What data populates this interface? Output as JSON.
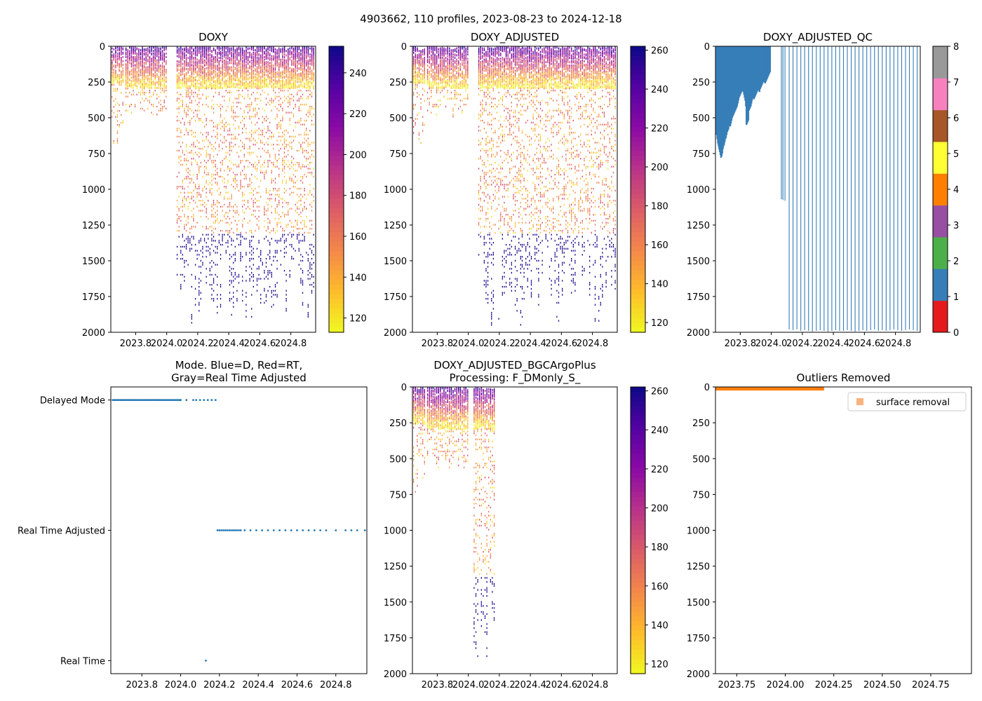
{
  "figure_title": "4903662, 110 profiles, 2023-08-23 to 2024-12-18",
  "colors": {
    "qc": [
      "#e41a1c",
      "#377eb8",
      "#4daf4a",
      "#984ea3",
      "#ff7f00",
      "#ffff33",
      "#a65628",
      "#f781bf",
      "#999999"
    ],
    "qc_bar": "#377eb8",
    "mode_point": "#1f77b4",
    "outlier": "#ff7f0e",
    "outlier_legend": "#f9b37e"
  },
  "chart_data": [
    {
      "id": "doxy",
      "type": "heatmap",
      "title": "DOXY",
      "x_ticks": [
        "2023.8",
        "2024.0",
        "2024.2",
        "2024.4",
        "2024.6",
        "2024.8"
      ],
      "x_tick_values": [
        2023.8,
        2024.0,
        2024.2,
        2024.4,
        2024.6,
        2024.8
      ],
      "xlim": [
        2023.64,
        2024.96
      ],
      "y_ticks": [
        "0",
        "250",
        "500",
        "750",
        "1000",
        "1250",
        "1500",
        "1750",
        "2000"
      ],
      "ylim": [
        2000,
        0
      ],
      "colorbar": {
        "cmap": "plasma_r",
        "range": [
          113,
          253
        ],
        "ticks": [
          "120",
          "140",
          "160",
          "180",
          "200",
          "220",
          "240"
        ],
        "tick_values": [
          120,
          140,
          160,
          180,
          200,
          220,
          240
        ]
      },
      "segments": [
        {
          "x": [
            2023.64,
            2023.73
          ],
          "shallow_max": 250,
          "deep_max": 700
        },
        {
          "x": [
            2023.73,
            2024.0
          ],
          "shallow_max": 290,
          "deep_max": 500
        },
        {
          "x": [
            2024.06,
            2024.34
          ],
          "shallow_max": 290,
          "deep_max": 2000
        },
        {
          "x": [
            2024.34,
            2024.95
          ],
          "shallow_max": 290,
          "deep_max": 1950
        }
      ]
    },
    {
      "id": "doxy_adjusted",
      "type": "heatmap",
      "title": "DOXY_ADJUSTED",
      "x_ticks": [
        "2023.8",
        "2024.0",
        "2024.2",
        "2024.4",
        "2024.6",
        "2024.8"
      ],
      "x_tick_values": [
        2023.8,
        2024.0,
        2024.2,
        2024.4,
        2024.6,
        2024.8
      ],
      "xlim": [
        2023.64,
        2024.96
      ],
      "y_ticks": [
        "0",
        "250",
        "500",
        "750",
        "1000",
        "1250",
        "1500",
        "1750",
        "2000"
      ],
      "ylim": [
        2000,
        0
      ],
      "colorbar": {
        "cmap": "plasma_r",
        "range": [
          115,
          262
        ],
        "ticks": [
          "120",
          "140",
          "160",
          "180",
          "200",
          "220",
          "240",
          "260"
        ],
        "tick_values": [
          120,
          140,
          160,
          180,
          200,
          220,
          240,
          260
        ]
      },
      "segments": [
        {
          "x": [
            2023.64,
            2023.73
          ],
          "shallow_max": 250,
          "deep_max": 700
        },
        {
          "x": [
            2023.73,
            2024.0
          ],
          "shallow_max": 290,
          "deep_max": 500
        },
        {
          "x": [
            2024.06,
            2024.34
          ],
          "shallow_max": 290,
          "deep_max": 2000
        },
        {
          "x": [
            2024.34,
            2024.95
          ],
          "shallow_max": 290,
          "deep_max": 1950
        }
      ]
    },
    {
      "id": "doxy_adjusted_qc",
      "type": "bar",
      "title": "DOXY_ADJUSTED_QC",
      "x_ticks": [
        "2023.8",
        "2024.0",
        "2024.2",
        "2024.4",
        "2024.6",
        "2024.8"
      ],
      "x_tick_values": [
        2023.8,
        2024.0,
        2024.2,
        2024.4,
        2024.6,
        2024.8
      ],
      "xlim": [
        2023.64,
        2024.96
      ],
      "y_ticks": [
        "0",
        "250",
        "500",
        "750",
        "1000",
        "1250",
        "1500",
        "1750",
        "2000"
      ],
      "ylim": [
        2000,
        0
      ],
      "colorbar": {
        "cmap": "qc",
        "range": [
          0,
          8
        ],
        "ticks": [
          "0",
          "1",
          "2",
          "3",
          "4",
          "5",
          "6",
          "7",
          "8"
        ],
        "tick_values": [
          0,
          1,
          2,
          3,
          4,
          5,
          6,
          7,
          8
        ]
      },
      "profile_x": [
        2023.648,
        2023.652,
        2023.656,
        2023.66,
        2023.664,
        2023.668,
        2023.672,
        2023.676,
        2023.68,
        2023.684,
        2023.688,
        2023.692,
        2023.696,
        2023.7,
        2023.704,
        2023.708,
        2023.712,
        2023.716,
        2023.72,
        2023.724,
        2023.728,
        2023.732,
        2023.736,
        2023.74,
        2023.744,
        2023.748,
        2023.752,
        2023.756,
        2023.76,
        2023.764,
        2023.768,
        2023.772,
        2023.776,
        2023.78,
        2023.784,
        2023.788,
        2023.792,
        2023.796,
        2023.8,
        2023.804,
        2023.808,
        2023.812,
        2023.816,
        2023.82,
        2023.824,
        2023.828,
        2023.832,
        2023.836,
        2023.84,
        2023.844,
        2023.848,
        2023.852,
        2023.856,
        2023.86,
        2023.864,
        2023.868,
        2023.872,
        2023.876,
        2023.88,
        2023.884,
        2023.888,
        2023.892,
        2023.896,
        2023.9,
        2023.904,
        2023.908,
        2023.912,
        2023.916,
        2023.92,
        2023.924,
        2023.928,
        2023.932,
        2023.936,
        2023.94,
        2023.944,
        2023.948,
        2023.952,
        2023.956,
        2023.96,
        2023.964,
        2023.968,
        2023.972,
        2023.976,
        2023.98,
        2023.984,
        2023.988,
        2023.992,
        2024.065,
        2024.075,
        2024.088,
        2024.115,
        2024.14,
        2024.165,
        2024.19,
        2024.215,
        2024.24,
        2024.265,
        2024.29,
        2024.315,
        2024.34,
        2024.365,
        2024.39,
        2024.415,
        2024.44,
        2024.465,
        2024.49,
        2024.515,
        2024.54,
        2024.565,
        2024.59,
        2024.615,
        2024.64,
        2024.665,
        2024.69,
        2024.715,
        2024.74,
        2024.765,
        2024.79,
        2024.815,
        2024.84,
        2024.865,
        2024.89,
        2024.915,
        2024.94
      ],
      "profile_max_depth": [
        620,
        650,
        680,
        700,
        720,
        740,
        760,
        780,
        770,
        750,
        720,
        700,
        690,
        670,
        650,
        640,
        620,
        600,
        590,
        580,
        560,
        550,
        560,
        540,
        520,
        500,
        490,
        480,
        470,
        460,
        450,
        440,
        430,
        420,
        400,
        380,
        360,
        350,
        340,
        330,
        320,
        310,
        300,
        320,
        340,
        360,
        380,
        420,
        550,
        540,
        530,
        520,
        450,
        440,
        430,
        420,
        400,
        380,
        360,
        350,
        370,
        360,
        350,
        340,
        330,
        320,
        310,
        300,
        310,
        320,
        300,
        290,
        280,
        270,
        260,
        250,
        240,
        250,
        260,
        250,
        240,
        230,
        220,
        210,
        200,
        190,
        180,
        1070,
        1075,
        1080,
        1980,
        1985,
        1980,
        1990,
        1985,
        1990,
        1995,
        1990,
        1985,
        1990,
        1995,
        1990,
        1985,
        1990,
        1990,
        1985,
        1990,
        1995,
        1990,
        1985,
        1990,
        1985,
        1980,
        1990,
        1985,
        1990,
        1985,
        1980,
        1985,
        1990,
        1985,
        1980,
        1985,
        1990
      ]
    },
    {
      "id": "mode",
      "type": "scatter",
      "title": "Mode. Blue=D, Red=RT,\nGray=Real Time Adjusted",
      "x_ticks": [
        "2023.8",
        "2024.0",
        "2024.2",
        "2024.4",
        "2024.6",
        "2024.8"
      ],
      "x_tick_values": [
        2023.8,
        2024.0,
        2024.2,
        2024.4,
        2024.6,
        2024.8
      ],
      "xlim": [
        2023.64,
        2024.96
      ],
      "y_ticks": [
        "Delayed Mode",
        "Real Time Adjusted",
        "Real Time"
      ],
      "y_tick_values": [
        2,
        1,
        0
      ],
      "ylim": [
        -0.1,
        2.1
      ],
      "points": [
        {
          "mode": "Delayed Mode",
          "x": [
            2023.65,
            2023.658,
            2023.666,
            2023.674,
            2023.682,
            2023.69,
            2023.698,
            2023.706,
            2023.714,
            2023.722,
            2023.73,
            2023.738,
            2023.746,
            2023.754,
            2023.762,
            2023.77,
            2023.778,
            2023.786,
            2023.794,
            2023.802,
            2023.81,
            2023.818,
            2023.826,
            2023.834,
            2023.842,
            2023.85,
            2023.858,
            2023.866,
            2023.874,
            2023.882,
            2023.89,
            2023.898,
            2023.906,
            2023.914,
            2023.922,
            2023.93,
            2023.938,
            2023.946,
            2023.954,
            2023.962,
            2023.97,
            2023.978,
            2023.986,
            2023.994,
            2024.0,
            2024.03,
            2024.065,
            2024.08,
            2024.1,
            2024.12,
            2024.14,
            2024.16,
            2024.18
          ]
        },
        {
          "mode": "Real Time Adjusted",
          "x": [
            2024.19,
            2024.2,
            2024.21,
            2024.22,
            2024.23,
            2024.24,
            2024.25,
            2024.26,
            2024.27,
            2024.28,
            2024.29,
            2024.3,
            2024.31,
            2024.33,
            2024.36,
            2024.39,
            2024.42,
            2024.45,
            2024.48,
            2024.51,
            2024.54,
            2024.57,
            2024.6,
            2024.63,
            2024.66,
            2024.69,
            2024.72,
            2024.75,
            2024.8,
            2024.85,
            2024.88,
            2024.91,
            2024.95
          ]
        },
        {
          "mode": "Real Time",
          "x": [
            2024.13
          ]
        }
      ]
    },
    {
      "id": "doxy_bgc",
      "type": "heatmap",
      "title": "DOXY_ADJUSTED_BGCArgoPlus\nProcessing: F_DMonly_S_",
      "x_ticks": [
        "2023.8",
        "2024.0",
        "2024.2",
        "2024.4",
        "2024.6",
        "2024.8"
      ],
      "x_tick_values": [
        2023.8,
        2024.0,
        2024.2,
        2024.4,
        2024.6,
        2024.8
      ],
      "xlim": [
        2023.64,
        2024.96
      ],
      "y_ticks": [
        "0",
        "250",
        "500",
        "750",
        "1000",
        "1250",
        "1500",
        "1750",
        "2000"
      ],
      "ylim": [
        2000,
        0
      ],
      "colorbar": {
        "cmap": "plasma_r",
        "range": [
          115,
          262
        ],
        "ticks": [
          "120",
          "140",
          "160",
          "180",
          "200",
          "220",
          "240",
          "260"
        ],
        "tick_values": [
          120,
          140,
          160,
          180,
          200,
          220,
          240,
          260
        ]
      },
      "segments": [
        {
          "x": [
            2023.64,
            2023.73
          ],
          "shallow_max": 250,
          "deep_max": 760
        },
        {
          "x": [
            2023.73,
            2024.0
          ],
          "shallow_max": 290,
          "deep_max": 600
        },
        {
          "x": [
            2024.03,
            2024.18
          ],
          "shallow_max": 290,
          "deep_max": 1950
        }
      ]
    },
    {
      "id": "outliers",
      "type": "area",
      "title": "Outliers Removed",
      "x_ticks": [
        "2023.75",
        "2024.00",
        "2024.25",
        "2024.50",
        "2024.75"
      ],
      "x_tick_values": [
        2023.75,
        2024.0,
        2024.25,
        2024.5,
        2024.75
      ],
      "xlim": [
        2023.64,
        2024.96
      ],
      "y_ticks": [
        "0",
        "250",
        "500",
        "750",
        "1000",
        "1250",
        "1500",
        "1750",
        "2000"
      ],
      "ylim": [
        2000,
        0
      ],
      "legend": {
        "label": "surface removal",
        "loc": "top-right"
      },
      "band": {
        "x": [
          2023.64,
          2024.2
        ],
        "depth_range": [
          0,
          25
        ]
      }
    }
  ]
}
